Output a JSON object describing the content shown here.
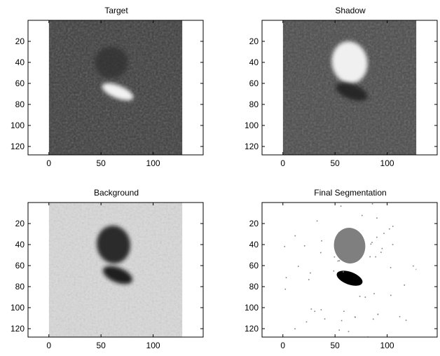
{
  "figure": {
    "background": "#ffffff"
  },
  "chart_data": [
    {
      "type": "heatmap",
      "title": "Target",
      "xlabel": "",
      "ylabel": "",
      "x_ticks": [
        "0",
        "50",
        "100"
      ],
      "y_ticks": [
        "20",
        "40",
        "60",
        "80",
        "100",
        "120"
      ],
      "xlim": [
        -20,
        148
      ],
      "ylim": [
        128,
        0
      ],
      "image_extent": {
        "cols": 128,
        "rows": 128
      },
      "colormap": "gray",
      "grid": false,
      "legend": "none",
      "base_gray": "#3d3d3d",
      "blobs": [
        {
          "label": "faint-shadow",
          "cx": 60,
          "cy": 40,
          "rx": 16,
          "ry": 15,
          "color": "#2f2f2f",
          "opacity": 0.7
        },
        {
          "label": "target-highlight",
          "cx": 66,
          "cy": 68,
          "rx": 16,
          "ry": 6,
          "rotate": 22,
          "color": "#f2f2f2",
          "opacity": 1
        }
      ]
    },
    {
      "type": "heatmap",
      "title": "Shadow",
      "xlabel": "",
      "ylabel": "",
      "x_ticks": [
        "0",
        "50",
        "100"
      ],
      "y_ticks": [
        "20",
        "40",
        "60",
        "80",
        "100",
        "120"
      ],
      "xlim": [
        -20,
        148
      ],
      "ylim": [
        128,
        0
      ],
      "image_extent": {
        "cols": 128,
        "rows": 128
      },
      "colormap": "gray",
      "grid": false,
      "legend": "none",
      "base_gray": "#4a4a4a",
      "blobs": [
        {
          "label": "shadow-highlight",
          "cx": 64,
          "cy": 40,
          "rx": 17,
          "ry": 20,
          "rotate": -10,
          "color": "#f0f0f0",
          "opacity": 1
        },
        {
          "label": "target-dark",
          "cx": 66,
          "cy": 68,
          "rx": 16,
          "ry": 7,
          "rotate": 20,
          "color": "#222222",
          "opacity": 0.9
        }
      ]
    },
    {
      "type": "heatmap",
      "title": "Background",
      "xlabel": "",
      "ylabel": "",
      "x_ticks": [
        "0",
        "50",
        "100"
      ],
      "y_ticks": [
        "20",
        "40",
        "60",
        "80",
        "100",
        "120"
      ],
      "xlim": [
        -20,
        148
      ],
      "ylim": [
        128,
        0
      ],
      "image_extent": {
        "cols": 128,
        "rows": 128
      },
      "colormap": "gray",
      "grid": false,
      "legend": "none",
      "base_gray": "#d9d9d9",
      "blobs": [
        {
          "label": "shadow-dark",
          "cx": 62,
          "cy": 40,
          "rx": 16,
          "ry": 18,
          "rotate": -10,
          "color": "#202020",
          "opacity": 0.95
        },
        {
          "label": "target-dark",
          "cx": 66,
          "cy": 69,
          "rx": 15,
          "ry": 7,
          "rotate": 22,
          "color": "#151515",
          "opacity": 0.95
        }
      ]
    },
    {
      "type": "heatmap",
      "title": "Final Segmentation",
      "xlabel": "",
      "ylabel": "",
      "x_ticks": [
        "0",
        "50",
        "100"
      ],
      "y_ticks": [
        "20",
        "40",
        "60",
        "80",
        "100",
        "120"
      ],
      "xlim": [
        -20,
        148
      ],
      "ylim": [
        128,
        0
      ],
      "image_extent": {
        "cols": 128,
        "rows": 128
      },
      "colormap": "3-level: background white, shadow gray, target black",
      "grid": false,
      "legend": "none",
      "base_gray": "#ffffff",
      "blobs": [
        {
          "label": "shadow-region",
          "cx": 64,
          "cy": 41,
          "rx": 15,
          "ry": 17,
          "rotate": -8,
          "color": "#7f7f7f",
          "opacity": 1
        },
        {
          "label": "target-region",
          "cx": 64,
          "cy": 72,
          "rx": 13,
          "ry": 6,
          "rotate": 20,
          "color": "#000000",
          "opacity": 1
        }
      ],
      "speckles": {
        "count": 60,
        "color": "#808080"
      }
    }
  ]
}
